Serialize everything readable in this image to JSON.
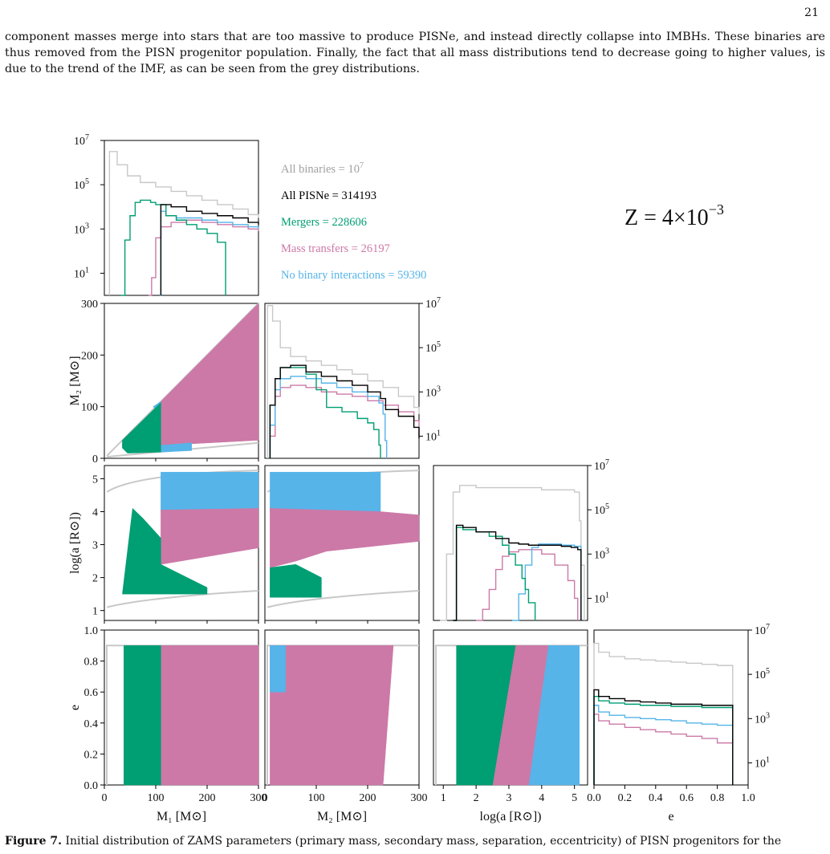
{
  "page": {
    "number": "21"
  },
  "paragraph": {
    "text": "component masses merge into stars that are too massive to produce PISNe, and instead directly collapse into IMBHs. These binaries are thus removed from the PISN progenitor population. Finally, the fact that all mass distributions tend to decrease going to higher values, is due to the trend of the IMF, as can be seen from the grey distributions."
  },
  "caption": {
    "label": "Figure 7.",
    "text": "Initial distribution of ZAMS parameters (primary mass, secondary mass, separation, eccentricity) of PISN progenitors for the"
  },
  "figure": {
    "metallicity_label": "Z = 4×10",
    "metallicity_exponent": "−3",
    "colors": {
      "all_binaries": "#c8c8c8",
      "all_pisne": "#000000",
      "mergers": "#009e73",
      "mass_transfers": "#cc79a7",
      "no_interaction": "#56b4e9"
    },
    "legend": [
      {
        "name": "All binaries = 10",
        "sup": "7",
        "color": "#a0a0a0"
      },
      {
        "name": "All PISNe = 314193",
        "sup": "",
        "color": "#000000"
      },
      {
        "name": "Mergers = 228606",
        "sup": "",
        "color": "#009e73"
      },
      {
        "name": "Mass transfers = 26197",
        "sup": "",
        "color": "#cc79a7"
      },
      {
        "name": "No binary interactions = 59390",
        "sup": "",
        "color": "#56b4e9"
      }
    ],
    "axis_labels": {
      "m1": "M₁ [M⊙]",
      "m2": "M₂ [M⊙]",
      "loga": "log(a [R⊙])",
      "e": "e"
    }
  },
  "chart_data": {
    "type": "corner",
    "variables": [
      "M1",
      "M2",
      "log_a",
      "e"
    ],
    "ranges": {
      "M1": [
        0,
        300
      ],
      "M2": [
        0,
        300
      ],
      "log_a": [
        0.7,
        5.4
      ],
      "e": [
        0,
        1
      ]
    },
    "ticks": {
      "M1": [
        "0",
        "100",
        "200",
        "300"
      ],
      "M2": [
        "0",
        "100",
        "200",
        "300"
      ],
      "log_a": [
        "1",
        "2",
        "3",
        "4",
        "5"
      ],
      "e": [
        "0.0",
        "0.2",
        "0.4",
        "0.6",
        "0.8",
        "1.0"
      ],
      "counts": [
        "10",
        "10",
        "10",
        "10"
      ],
      "counts_exp": [
        "1",
        "3",
        "5",
        "7"
      ]
    },
    "counts_log_range": [
      0,
      7
    ],
    "totals": {
      "all_binaries": 10000000,
      "all_pisne": 314193,
      "mergers": 228606,
      "mass_transfers": 26197,
      "no_interaction": 59390
    },
    "histograms": {
      "M1": {
        "all": {
          "x": [
            10,
            25,
            45,
            70,
            100,
            130,
            160,
            190,
            220,
            250,
            280,
            300
          ],
          "y": [
            6.5,
            5.9,
            5.4,
            5.1,
            4.9,
            4.7,
            4.5,
            4.3,
            4.1,
            3.9,
            3.65,
            3.5
          ]
        },
        "pisne": {
          "x": [
            110,
            130,
            160,
            190,
            220,
            250,
            280,
            300
          ],
          "y": [
            4.1,
            4.0,
            3.8,
            3.7,
            3.6,
            3.5,
            3.3,
            3.2
          ]
        },
        "merger": {
          "x": [
            32,
            40,
            50,
            60,
            70,
            80,
            90,
            100,
            120,
            140,
            160,
            180,
            200,
            220,
            236
          ],
          "y": [
            0,
            2.5,
            3.6,
            4.2,
            4.3,
            4.3,
            4.2,
            4.1,
            3.6,
            3.4,
            3.2,
            3.0,
            2.8,
            2.4,
            0
          ]
        },
        "mt": {
          "x": [
            86,
            92,
            100,
            110,
            130,
            160,
            190,
            220,
            250,
            280,
            300
          ],
          "y": [
            0,
            0.8,
            2.6,
            3.1,
            3.3,
            3.4,
            3.3,
            3.2,
            3.1,
            3.0,
            2.9
          ]
        },
        "noint": {
          "x": [
            108,
            110,
            120,
            140,
            160,
            190,
            220,
            250,
            280,
            300
          ],
          "y": [
            0,
            3.8,
            3.6,
            3.5,
            3.5,
            3.4,
            3.3,
            3.2,
            3.1,
            3.0
          ]
        }
      },
      "M2": {
        "all": {
          "x": [
            5,
            15,
            30,
            50,
            80,
            110,
            140,
            170,
            200,
            230,
            260,
            290,
            300
          ],
          "y": [
            6.9,
            6.2,
            5.0,
            4.6,
            4.4,
            4.2,
            4.0,
            3.8,
            3.5,
            3.2,
            2.8,
            2.3,
            2.0
          ]
        },
        "pisne": {
          "x": [
            10,
            20,
            30,
            50,
            80,
            110,
            140,
            170,
            200,
            225,
            235,
            260,
            290,
            300
          ],
          "y": [
            2.4,
            3.6,
            4.1,
            4.2,
            3.9,
            3.7,
            3.5,
            3.3,
            3.0,
            2.7,
            2.2,
            1.9,
            1.4,
            0.9
          ]
        },
        "merger": {
          "x": [
            10,
            20,
            30,
            50,
            80,
            100,
            120,
            150,
            180,
            200,
            212,
            222,
            225
          ],
          "y": [
            2.4,
            3.6,
            4.1,
            4.1,
            3.8,
            3.1,
            2.3,
            2.1,
            1.8,
            1.6,
            1.3,
            0.6,
            0
          ]
        },
        "mt": {
          "x": [
            10,
            20,
            30,
            50,
            80,
            110,
            140,
            170,
            200,
            230,
            260,
            290,
            300
          ],
          "y": [
            1.0,
            2.8,
            3.2,
            3.3,
            3.2,
            3.0,
            2.9,
            2.8,
            2.6,
            2.4,
            2.1,
            1.7,
            1.0
          ]
        },
        "noint": {
          "x": [
            10,
            20,
            30,
            50,
            80,
            110,
            140,
            170,
            200,
            222,
            230,
            234,
            237
          ],
          "y": [
            1.5,
            3.1,
            3.6,
            3.7,
            3.6,
            3.4,
            3.2,
            3.0,
            2.8,
            2.5,
            2.0,
            0.8,
            0
          ]
        }
      },
      "log_a": {
        "all": {
          "x": [
            0.9,
            1.1,
            1.3,
            1.5,
            2.0,
            3.0,
            4.0,
            5.0,
            5.15,
            5.2,
            5.3
          ],
          "y": [
            0,
            3.0,
            5.8,
            6.1,
            6.0,
            6.0,
            5.9,
            5.8,
            4.5,
            2.5,
            0
          ]
        },
        "pisne": {
          "x": [
            1.3,
            1.4,
            1.6,
            2.0,
            2.6,
            3.0,
            3.3,
            3.6,
            4.0,
            4.6,
            4.9,
            5.1,
            5.2
          ],
          "y": [
            0,
            4.3,
            4.2,
            4.0,
            3.7,
            3.5,
            3.45,
            3.4,
            3.4,
            3.35,
            3.3,
            3.2,
            0
          ]
        },
        "merger": {
          "x": [
            1.3,
            1.4,
            1.6,
            2.0,
            2.4,
            2.8,
            3.0,
            3.2,
            3.4,
            3.5,
            3.6,
            3.8
          ],
          "y": [
            0,
            4.2,
            4.1,
            4.0,
            3.8,
            3.4,
            3.0,
            2.5,
            1.9,
            1.4,
            0.8,
            0
          ]
        },
        "mt": {
          "x": [
            2.0,
            2.2,
            2.4,
            2.6,
            2.8,
            3.0,
            3.3,
            3.6,
            4.0,
            4.4,
            4.8,
            5.0,
            5.1
          ],
          "y": [
            0,
            0.5,
            1.4,
            2.3,
            2.9,
            3.1,
            3.2,
            3.2,
            3.0,
            2.5,
            1.8,
            1.0,
            0
          ]
        },
        "noint": {
          "x": [
            3.1,
            3.3,
            3.5,
            3.7,
            3.9,
            4.2,
            4.6,
            5.0,
            5.2
          ],
          "y": [
            0,
            1.2,
            2.5,
            3.3,
            3.45,
            3.45,
            3.4,
            3.35,
            0
          ]
        }
      },
      "e": {
        "all": {
          "x": [
            0.0,
            0.03,
            0.1,
            0.2,
            0.3,
            0.4,
            0.5,
            0.6,
            0.7,
            0.8,
            0.9
          ],
          "y": [
            6.4,
            6.0,
            5.8,
            5.7,
            5.65,
            5.6,
            5.55,
            5.5,
            5.45,
            5.4,
            0
          ]
        },
        "pisne": {
          "x": [
            0.0,
            0.03,
            0.1,
            0.2,
            0.3,
            0.4,
            0.5,
            0.6,
            0.7,
            0.8,
            0.9
          ],
          "y": [
            4.3,
            4.0,
            3.9,
            3.8,
            3.75,
            3.7,
            3.65,
            3.65,
            3.6,
            3.6,
            0
          ]
        },
        "merger": {
          "x": [
            0.0,
            0.03,
            0.1,
            0.2,
            0.3,
            0.4,
            0.5,
            0.6,
            0.7,
            0.8,
            0.9
          ],
          "y": [
            4.0,
            3.8,
            3.7,
            3.65,
            3.6,
            3.6,
            3.55,
            3.55,
            3.5,
            3.5,
            0
          ]
        },
        "mt": {
          "x": [
            0.0,
            0.03,
            0.1,
            0.2,
            0.3,
            0.4,
            0.5,
            0.6,
            0.7,
            0.8,
            0.9
          ],
          "y": [
            3.2,
            2.9,
            2.75,
            2.6,
            2.5,
            2.4,
            2.3,
            2.2,
            2.1,
            1.9,
            0
          ]
        },
        "noint": {
          "x": [
            0.0,
            0.03,
            0.1,
            0.2,
            0.3,
            0.4,
            0.5,
            0.6,
            0.7,
            0.8,
            0.9
          ],
          "y": [
            3.6,
            3.3,
            3.15,
            3.05,
            3.0,
            2.95,
            2.9,
            2.8,
            2.75,
            2.7,
            0
          ]
        }
      }
    },
    "scatter_regions": {
      "M1_M2": [
        {
          "group": "mass_transfers",
          "polygon": [
            [
              110,
              25
            ],
            [
              300,
              35
            ],
            [
              300,
              300
            ],
            [
              110,
              110
            ]
          ]
        },
        {
          "group": "no_interaction",
          "polygon": [
            [
              95,
              100
            ],
            [
              110,
              110
            ],
            [
              110,
              98
            ],
            [
              100,
              95
            ]
          ]
        },
        {
          "group": "no_interaction",
          "polygon": [
            [
              110,
              25
            ],
            [
              170,
              30
            ],
            [
              170,
              15
            ],
            [
              110,
              12
            ]
          ]
        },
        {
          "group": "mergers",
          "polygon": [
            [
              35,
              35
            ],
            [
              110,
              108
            ],
            [
              110,
              12
            ],
            [
              45,
              10
            ],
            [
              35,
              20
            ]
          ]
        }
      ],
      "M1_loga": [
        {
          "group": "no_interaction",
          "polygon": [
            [
              110,
              4.0
            ],
            [
              300,
              4.1
            ],
            [
              300,
              5.2
            ],
            [
              110,
              5.2
            ]
          ]
        },
        {
          "group": "mass_transfers",
          "polygon": [
            [
              110,
              2.4
            ],
            [
              300,
              2.9
            ],
            [
              300,
              4.1
            ],
            [
              110,
              4.05
            ]
          ]
        },
        {
          "group": "mergers",
          "polygon": [
            [
              35,
              1.5
            ],
            [
              55,
              4.1
            ],
            [
              75,
              3.8
            ],
            [
              110,
              3.2
            ],
            [
              110,
              2.4
            ],
            [
              200,
              1.7
            ],
            [
              200,
              1.5
            ]
          ]
        }
      ],
      "M2_loga": [
        {
          "group": "no_interaction",
          "polygon": [
            [
              10,
              4.0
            ],
            [
              225,
              4.0
            ],
            [
              225,
              5.2
            ],
            [
              10,
              5.2
            ]
          ]
        },
        {
          "group": "mass_transfers",
          "polygon": [
            [
              10,
              2.3
            ],
            [
              60,
              2.5
            ],
            [
              120,
              2.8
            ],
            [
              300,
              3.1
            ],
            [
              300,
              3.9
            ],
            [
              225,
              4.0
            ],
            [
              10,
              4.1
            ]
          ]
        },
        {
          "group": "mergers",
          "polygon": [
            [
              10,
              1.4
            ],
            [
              10,
              2.3
            ],
            [
              60,
              2.4
            ],
            [
              110,
              2.0
            ],
            [
              110,
              1.4
            ]
          ]
        }
      ],
      "M1_e": [
        {
          "group": "mass_transfers",
          "polygon": [
            [
              110,
              0
            ],
            [
              300,
              0
            ],
            [
              300,
              0.9
            ],
            [
              110,
              0.9
            ]
          ]
        },
        {
          "group": "mergers",
          "polygon": [
            [
              38,
              0
            ],
            [
              110,
              0
            ],
            [
              110,
              0.9
            ],
            [
              38,
              0.9
            ]
          ]
        }
      ],
      "M2_e": [
        {
          "group": "mass_transfers",
          "polygon": [
            [
              10,
              0
            ],
            [
              230,
              0
            ],
            [
              250,
              0.9
            ],
            [
              10,
              0.9
            ]
          ]
        },
        {
          "group": "no_interaction",
          "polygon": [
            [
              10,
              0.6
            ],
            [
              40,
              0.6
            ],
            [
              40,
              0.9
            ],
            [
              10,
              0.9
            ]
          ]
        }
      ],
      "loga_e": [
        {
          "group": "no_interaction",
          "polygon": [
            [
              3.6,
              0
            ],
            [
              5.15,
              0
            ],
            [
              5.15,
              0.9
            ],
            [
              4.2,
              0.9
            ]
          ]
        },
        {
          "group": "mass_transfers",
          "polygon": [
            [
              2.5,
              0
            ],
            [
              3.6,
              0
            ],
            [
              4.2,
              0.9
            ],
            [
              3.2,
              0.9
            ]
          ]
        },
        {
          "group": "mergers",
          "polygon": [
            [
              1.4,
              0
            ],
            [
              2.5,
              0
            ],
            [
              3.2,
              0.9
            ],
            [
              1.4,
              0.9
            ]
          ]
        }
      ]
    }
  }
}
